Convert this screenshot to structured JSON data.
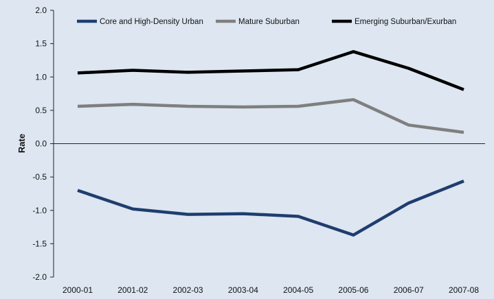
{
  "chart_data": {
    "type": "line",
    "title": "",
    "xlabel": "",
    "ylabel": "Rate",
    "categories": [
      "2000-01",
      "2001-02",
      "2002-03",
      "2003-04",
      "2004-05",
      "2005-06",
      "2006-07",
      "2007-08"
    ],
    "ylim": [
      -2.0,
      2.0
    ],
    "yticks": [
      -2.0,
      -1.5,
      -1.0,
      -0.5,
      0.0,
      0.5,
      1.0,
      1.5,
      2.0
    ],
    "ytick_labels": [
      "-2.0",
      "-1.5",
      "-1.0",
      "-0.5",
      "0.0",
      "0.5",
      "1.0",
      "1.5",
      "2.0"
    ],
    "grid": false,
    "legend_position": "top",
    "series": [
      {
        "name": "Core and High-Density Urban",
        "color": "#1f3d6e",
        "values": [
          -0.7,
          -0.98,
          -1.06,
          -1.05,
          -1.09,
          -1.37,
          -0.89,
          -0.56
        ]
      },
      {
        "name": "Mature Suburban",
        "color": "#7f7f7f",
        "values": [
          0.56,
          0.59,
          0.56,
          0.55,
          0.56,
          0.66,
          0.28,
          0.17
        ]
      },
      {
        "name": "Emerging Suburban/Exurban",
        "color": "#000000",
        "values": [
          1.06,
          1.1,
          1.07,
          1.09,
          1.11,
          1.38,
          1.13,
          0.81
        ]
      }
    ]
  }
}
